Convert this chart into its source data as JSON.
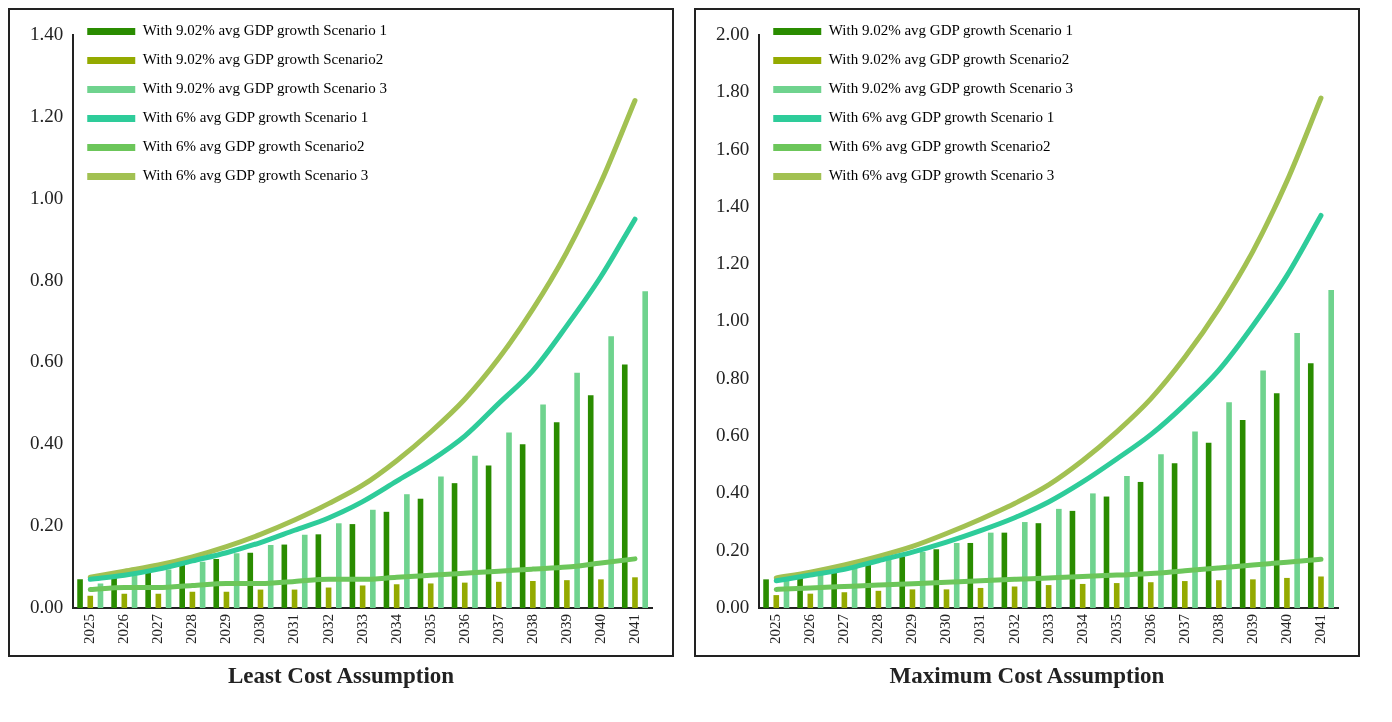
{
  "chart_data": [
    {
      "type": "bar",
      "title": "Least Cost Assumption",
      "categories": [
        "2025",
        "2026",
        "2027",
        "2028",
        "2029",
        "2030",
        "2031",
        "2032",
        "2033",
        "2034",
        "2035",
        "2036",
        "2037",
        "2038",
        "2039",
        "2040",
        "2041"
      ],
      "series": [
        {
          "name": "With 9.02% avg GDP growth Scenario 1",
          "color": "#2a8c00",
          "values": [
            0.07,
            0.076,
            0.09,
            0.105,
            0.12,
            0.135,
            0.155,
            0.18,
            0.205,
            0.235,
            0.267,
            0.305,
            0.348,
            0.4,
            0.454,
            0.52,
            0.595
          ]
        },
        {
          "name": "With 9.02% avg GDP growth Scenario2",
          "color": "#94aa00",
          "values": [
            0.03,
            0.035,
            0.035,
            0.04,
            0.04,
            0.045,
            0.045,
            0.05,
            0.055,
            0.058,
            0.06,
            0.062,
            0.064,
            0.066,
            0.068,
            0.07,
            0.075
          ]
        },
        {
          "name": "With 9.02% avg GDP growth Scenario 3",
          "color": "#6fd38e",
          "values": [
            0.06,
            0.081,
            0.094,
            0.113,
            0.134,
            0.154,
            0.179,
            0.207,
            0.24,
            0.278,
            0.321,
            0.372,
            0.429,
            0.497,
            0.575,
            0.664,
            0.774
          ]
        },
        {
          "name": "With 6% avg GDP growth Scenario 1",
          "type": "line",
          "color": "#2ecc9a",
          "values": [
            0.07,
            0.08,
            0.095,
            0.115,
            0.135,
            0.16,
            0.19,
            0.22,
            0.26,
            0.31,
            0.36,
            0.42,
            0.5,
            0.58,
            0.69,
            0.81,
            0.95
          ]
        },
        {
          "name": "With 6% avg GDP growth Scenario2",
          "type": "line",
          "color": "#6cc65a",
          "values": [
            0.045,
            0.05,
            0.05,
            0.055,
            0.06,
            0.06,
            0.065,
            0.07,
            0.07,
            0.075,
            0.08,
            0.085,
            0.09,
            0.095,
            0.1,
            0.11,
            0.12
          ]
        },
        {
          "name": "With 6% avg GDP growth Scenario 3",
          "type": "line",
          "color": "#a2c152",
          "values": [
            0.075,
            0.09,
            0.105,
            0.125,
            0.15,
            0.18,
            0.215,
            0.255,
            0.3,
            0.36,
            0.43,
            0.51,
            0.61,
            0.73,
            0.87,
            1.04,
            1.24
          ]
        }
      ],
      "ylim": [
        0,
        1.4
      ],
      "yticks": [
        {
          "value": 0,
          "label": "0.00"
        },
        {
          "value": 0.2,
          "label": "0.20"
        },
        {
          "value": 0.4,
          "label": "0.40"
        },
        {
          "value": 0.6,
          "label": "0.60"
        },
        {
          "value": 0.8,
          "label": "0.80"
        },
        {
          "value": 1,
          "label": "1.00"
        },
        {
          "value": 1.2,
          "label": "1.20"
        },
        {
          "value": 1.4,
          "label": "1.40"
        }
      ],
      "legend": "top left",
      "marker": "none"
    },
    {
      "type": "bar",
      "title": "Maximum Cost Assumption",
      "categories": [
        "2025",
        "2026",
        "2027",
        "2028",
        "2029",
        "2030",
        "2031",
        "2032",
        "2033",
        "2034",
        "2035",
        "2036",
        "2037",
        "2038",
        "2039",
        "2040",
        "2041"
      ],
      "series": [
        {
          "name": "With 9.02% avg GDP growth Scenario 1",
          "color": "#2a8c00",
          "values": [
            0.1,
            0.11,
            0.133,
            0.156,
            0.18,
            0.205,
            0.227,
            0.263,
            0.296,
            0.339,
            0.389,
            0.44,
            0.505,
            0.577,
            0.656,
            0.75,
            0.854
          ]
        },
        {
          "name": "With 9.02% avg GDP growth Scenario2",
          "color": "#94aa00",
          "values": [
            0.045,
            0.05,
            0.055,
            0.06,
            0.065,
            0.065,
            0.07,
            0.075,
            0.08,
            0.084,
            0.087,
            0.09,
            0.094,
            0.097,
            0.1,
            0.105,
            0.11
          ]
        },
        {
          "name": "With 9.02% avg GDP growth Scenario 3",
          "color": "#6fd38e",
          "values": [
            0.1,
            0.122,
            0.142,
            0.169,
            0.196,
            0.227,
            0.263,
            0.3,
            0.346,
            0.4,
            0.461,
            0.537,
            0.616,
            0.718,
            0.829,
            0.96,
            1.11
          ]
        },
        {
          "name": "With 6% avg GDP growth Scenario 1",
          "type": "line",
          "color": "#2ecc9a",
          "values": [
            0.095,
            0.115,
            0.135,
            0.165,
            0.195,
            0.23,
            0.27,
            0.315,
            0.37,
            0.44,
            0.52,
            0.605,
            0.71,
            0.83,
            0.985,
            1.16,
            1.37
          ]
        },
        {
          "name": "With 6% avg GDP growth Scenario2",
          "type": "line",
          "color": "#6cc65a",
          "values": [
            0.065,
            0.07,
            0.075,
            0.08,
            0.085,
            0.09,
            0.095,
            0.1,
            0.105,
            0.11,
            0.115,
            0.12,
            0.13,
            0.14,
            0.15,
            0.16,
            0.17
          ]
        },
        {
          "name": "With 6% avg GDP growth Scenario 3",
          "type": "line",
          "color": "#a2c152",
          "values": [
            0.105,
            0.125,
            0.15,
            0.18,
            0.215,
            0.26,
            0.31,
            0.365,
            0.43,
            0.515,
            0.615,
            0.73,
            0.875,
            1.045,
            1.245,
            1.49,
            1.78
          ]
        }
      ],
      "ylim": [
        0,
        2
      ],
      "yticks": [
        {
          "value": 0,
          "label": "0.00"
        },
        {
          "value": 0.2,
          "label": "0.20"
        },
        {
          "value": 0.4,
          "label": "0.40"
        },
        {
          "value": 0.6,
          "label": "0.60"
        },
        {
          "value": 0.8,
          "label": "0.80"
        },
        {
          "value": 1,
          "label": "1.00"
        },
        {
          "value": 1.2,
          "label": "1.20"
        },
        {
          "value": 1.4,
          "label": "1.40"
        },
        {
          "value": 1.6,
          "label": "1.60"
        },
        {
          "value": 1.8,
          "label": "1.80"
        },
        {
          "value": 2,
          "label": "2.00"
        }
      ],
      "legend": "top left",
      "marker": "none"
    }
  ]
}
